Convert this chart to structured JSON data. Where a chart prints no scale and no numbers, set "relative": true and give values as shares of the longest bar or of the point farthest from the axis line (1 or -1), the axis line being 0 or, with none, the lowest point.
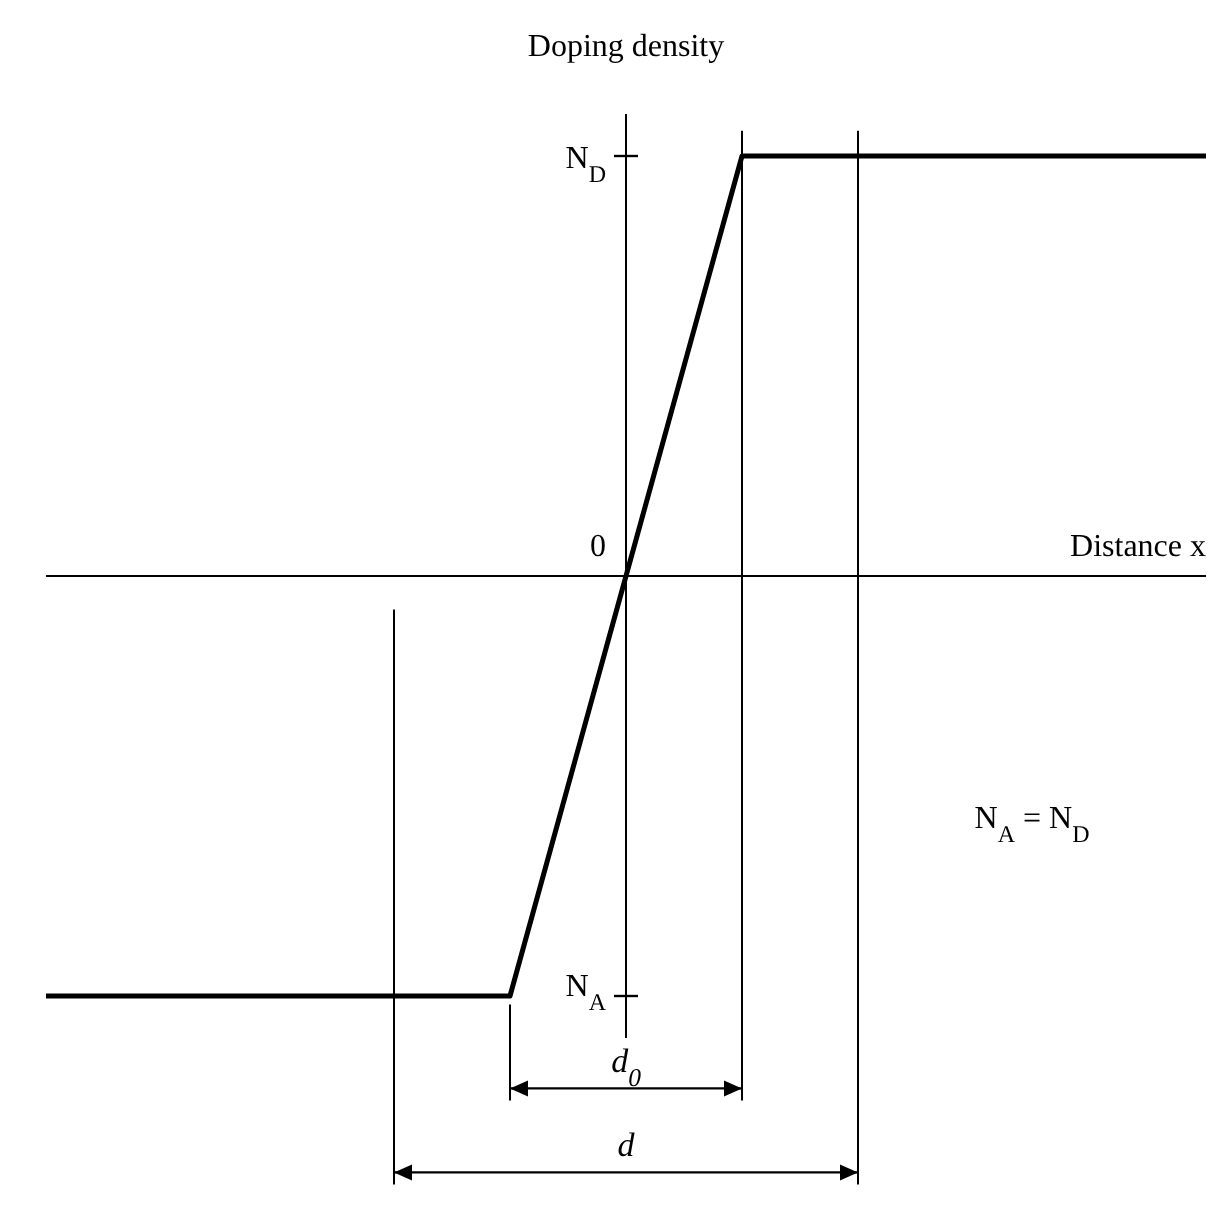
{
  "chart_data": {
    "type": "line",
    "ylabel": "Doping density",
    "xlabel": "Distance x",
    "categories": [
      null,
      null,
      null,
      null,
      null,
      null,
      null,
      null,
      null,
      null,
      null
    ],
    "series": [
      {
        "color": "#000000",
        "values": [
          -1,
          -1,
          -1,
          -1,
          -1,
          0,
          1,
          1,
          1,
          1,
          1
        ]
      }
    ],
    "relative": true,
    "annotations": [
      "N$_{D}$",
      "0",
      "N$_{A}$",
      "d$_{0}$",
      "d",
      "N$_{A}$ = N$_{D}$"
    ],
    "grid": "x",
    "marker": "none",
    "line_style": "solid"
  }
}
